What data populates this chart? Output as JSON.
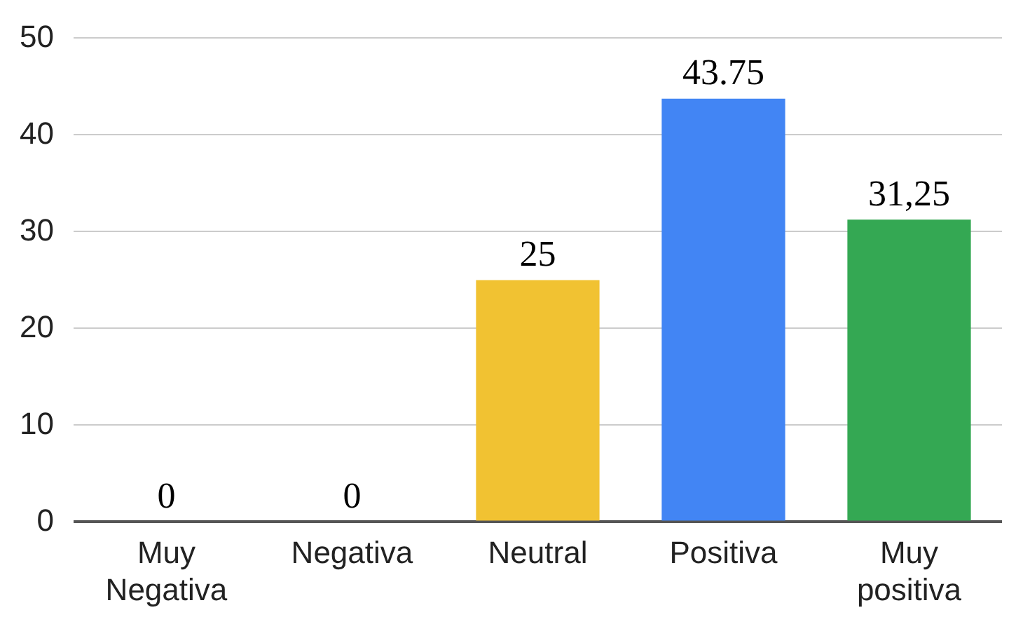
{
  "chart_data": {
    "type": "bar",
    "categories": [
      "Muy Negativa",
      "Negativa",
      "Neutral",
      "Positiva",
      "Muy positiva"
    ],
    "values": [
      0,
      0,
      25,
      43.75,
      31.25
    ],
    "colors": [
      "#6d9eeb",
      "#6d9eeb",
      "#f1c232",
      "#4285f4",
      "#34a853"
    ],
    "value_labels": [
      "0",
      "0",
      "25",
      "43.75",
      "31,25"
    ],
    "ylim": [
      0,
      50
    ],
    "yticks": [
      0,
      10,
      20,
      30,
      40,
      50
    ],
    "grid": "y",
    "legend": false
  }
}
